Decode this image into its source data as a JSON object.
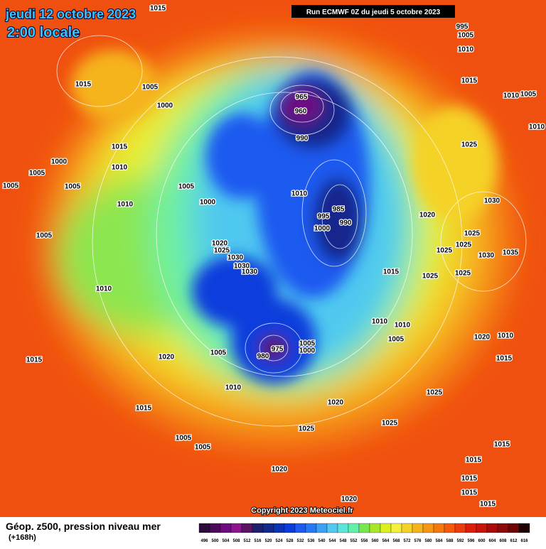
{
  "header": {
    "date": "jeudi 12 octobre 2023",
    "time": "2:00 locale",
    "run": "Run ECMWF 0Z du jeudi 5 octobre 2023"
  },
  "copyright": "Copyright 2023 Meteociel.fr",
  "legend": {
    "title": "Géop. z500, pression niveau mer",
    "lead": "(+168h)",
    "levels": [
      496,
      500,
      504,
      508,
      512,
      516,
      520,
      524,
      528,
      532,
      536,
      540,
      544,
      548,
      552,
      556,
      560,
      564,
      568,
      572,
      576,
      580,
      584,
      588,
      592,
      596,
      600,
      604,
      608,
      612,
      616
    ],
    "colors": [
      "#2d0a3c",
      "#4b0a5a",
      "#6e0a82",
      "#8c148c",
      "#5a1464",
      "#1e1e6e",
      "#14288c",
      "#0a32b4",
      "#0a3cdc",
      "#1e5af0",
      "#2878f5",
      "#3ca0f5",
      "#50c8f0",
      "#5ae6dc",
      "#64f0aa",
      "#78e650",
      "#aae628",
      "#dcf01e",
      "#f5f03c",
      "#f5d228",
      "#f5b41e",
      "#f59614",
      "#f5780a",
      "#f55a0a",
      "#eb3c0a",
      "#dc1e0a",
      "#c8140a",
      "#aa0a0a",
      "#8c0a0a",
      "#6e0505",
      "#1e0000"
    ]
  },
  "isobar_labels": [
    1015,
    1015,
    1005,
    1000,
    1015,
    1000,
    1010,
    1005,
    1005,
    1005,
    1005,
    1010,
    1000,
    1005,
    1010,
    1020,
    1025,
    1030,
    1030,
    1030,
    965,
    960,
    990,
    1010,
    985,
    995,
    990,
    1000,
    1015,
    1020,
    1025,
    1025,
    1025,
    1030,
    1035,
    1030,
    1025,
    1025,
    1025,
    1015,
    1010,
    1005,
    1010,
    1005,
    1010,
    995,
    1010,
    1010,
    1005,
    1020,
    1010,
    1015,
    1005,
    975,
    980,
    1000,
    1005,
    1020,
    1015,
    1010,
    1025,
    1020,
    1025,
    1025,
    1015,
    1005,
    1005,
    1020,
    1015,
    1015,
    1015,
    1015,
    1015,
    1020
  ]
}
